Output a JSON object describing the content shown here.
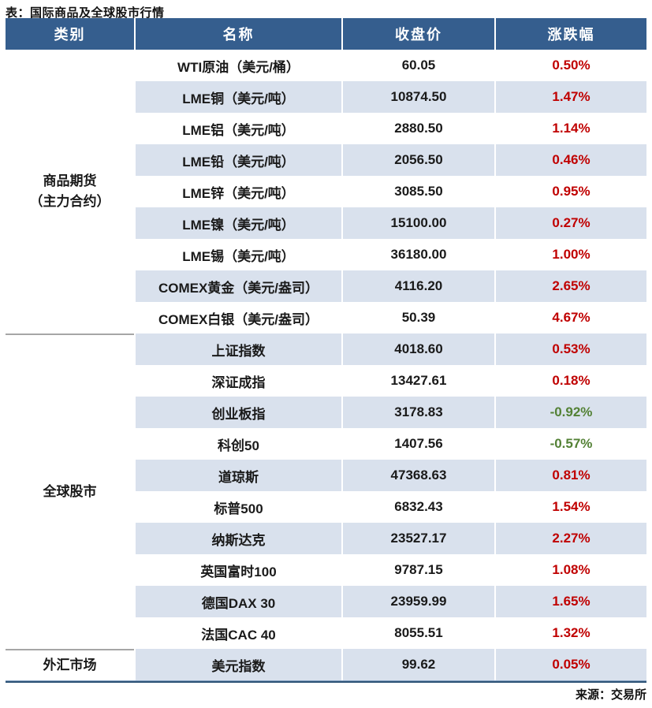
{
  "title": "表：国际商品及全球股市行情",
  "header": {
    "category": "类别",
    "name": "名称",
    "close": "收盘价",
    "change": "涨跌幅"
  },
  "sections": [
    {
      "category_lines": [
        "商品期货",
        "（主力合约）"
      ],
      "rows": [
        {
          "name": "WTI原油（美元/桶）",
          "close": "60.05",
          "change": "0.50%"
        },
        {
          "name": "LME铜（美元/吨）",
          "close": "10874.50",
          "change": "1.47%"
        },
        {
          "name": "LME铝（美元/吨）",
          "close": "2880.50",
          "change": "1.14%"
        },
        {
          "name": "LME铅（美元/吨）",
          "close": "2056.50",
          "change": "0.46%"
        },
        {
          "name": "LME锌（美元/吨）",
          "close": "3085.50",
          "change": "0.95%"
        },
        {
          "name": "LME镍（美元/吨）",
          "close": "15100.00",
          "change": "0.27%"
        },
        {
          "name": "LME锡（美元/吨）",
          "close": "36180.00",
          "change": "1.00%"
        },
        {
          "name": "COMEX黄金（美元/盎司）",
          "close": "4116.20",
          "change": "2.65%"
        },
        {
          "name": "COMEX白银（美元/盎司）",
          "close": "50.39",
          "change": "4.67%"
        }
      ]
    },
    {
      "category_lines": [
        "全球股市"
      ],
      "rows": [
        {
          "name": "上证指数",
          "close": "4018.60",
          "change": "0.53%"
        },
        {
          "name": "深证成指",
          "close": "13427.61",
          "change": "0.18%"
        },
        {
          "name": "创业板指",
          "close": "3178.83",
          "change": "-0.92%"
        },
        {
          "name": "科创50",
          "close": "1407.56",
          "change": "-0.57%"
        },
        {
          "name": "道琼斯",
          "close": "47368.63",
          "change": "0.81%"
        },
        {
          "name": "标普500",
          "close": "6832.43",
          "change": "1.54%"
        },
        {
          "name": "纳斯达克",
          "close": "23527.17",
          "change": "2.27%"
        },
        {
          "name": "英国富时100",
          "close": "9787.15",
          "change": "1.08%"
        },
        {
          "name": "德国DAX 30",
          "close": "23959.99",
          "change": "1.65%"
        },
        {
          "name": "法国CAC 40",
          "close": "8055.51",
          "change": "1.32%"
        }
      ]
    },
    {
      "category_lines": [
        "外汇市场"
      ],
      "rows": [
        {
          "name": "美元指数",
          "close": "99.62",
          "change": "0.05%"
        }
      ]
    }
  ],
  "footer": {
    "source": "来源：交易所"
  },
  "colors": {
    "header_bg": "#355E8E",
    "stripe": "#D9E1ED",
    "up_red": "#C00000",
    "down_green": "#538135",
    "bottom_line": "#2E5377"
  },
  "chart_data": {
    "type": "table",
    "title": "表：国际商品及全球股市行情",
    "columns": [
      "类别",
      "名称",
      "收盘价",
      "涨跌幅"
    ],
    "rows": [
      [
        "商品期货（主力合约）",
        "WTI原油（美元/桶）",
        60.05,
        "0.50%"
      ],
      [
        "商品期货（主力合约）",
        "LME铜（美元/吨）",
        10874.5,
        "1.47%"
      ],
      [
        "商品期货（主力合约）",
        "LME铝（美元/吨）",
        2880.5,
        "1.14%"
      ],
      [
        "商品期货（主力合约）",
        "LME铅（美元/吨）",
        2056.5,
        "0.46%"
      ],
      [
        "商品期货（主力合约）",
        "LME锌（美元/吨）",
        3085.5,
        "0.95%"
      ],
      [
        "商品期货（主力合约）",
        "LME镍（美元/吨）",
        15100.0,
        "0.27%"
      ],
      [
        "商品期货（主力合约）",
        "LME锡（美元/吨）",
        36180.0,
        "1.00%"
      ],
      [
        "商品期货（主力合约）",
        "COMEX黄金（美元/盎司）",
        4116.2,
        "2.65%"
      ],
      [
        "商品期货（主力合约）",
        "COMEX白银（美元/盎司）",
        50.39,
        "4.67%"
      ],
      [
        "全球股市",
        "上证指数",
        4018.6,
        "0.53%"
      ],
      [
        "全球股市",
        "深证成指",
        13427.61,
        "0.18%"
      ],
      [
        "全球股市",
        "创业板指",
        3178.83,
        "-0.92%"
      ],
      [
        "全球股市",
        "科创50",
        1407.56,
        "-0.57%"
      ],
      [
        "全球股市",
        "道琼斯",
        47368.63,
        "0.81%"
      ],
      [
        "全球股市",
        "标普500",
        6832.43,
        "1.54%"
      ],
      [
        "全球股市",
        "纳斯达克",
        23527.17,
        "2.27%"
      ],
      [
        "全球股市",
        "英国富时100",
        9787.15,
        "1.08%"
      ],
      [
        "全球股市",
        "德国DAX 30",
        23959.99,
        "1.65%"
      ],
      [
        "全球股市",
        "法国CAC 40",
        8055.51,
        "1.32%"
      ],
      [
        "外汇市场",
        "美元指数",
        99.62,
        "0.05%"
      ]
    ],
    "notes": "positive changes shown in red, negative in green",
    "source": "来源：交易所"
  }
}
